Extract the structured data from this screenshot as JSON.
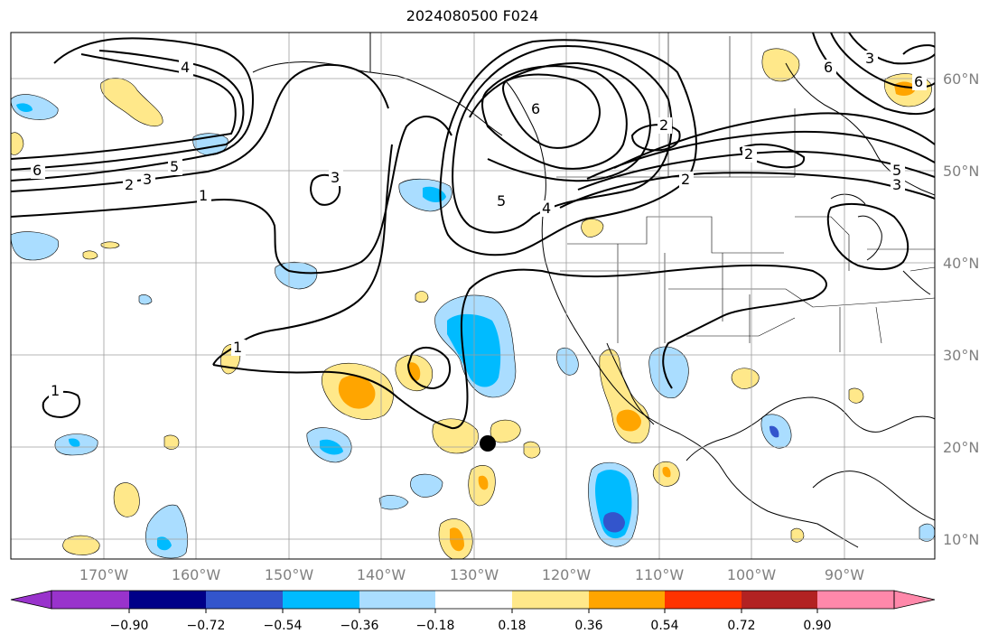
{
  "title": "2024080500 F024",
  "longitude_labels": [
    "170°W",
    "160°W",
    "150°W",
    "140°W",
    "130°W",
    "120°W",
    "110°W",
    "100°W",
    "90°W"
  ],
  "latitude_labels": [
    "60°N",
    "50°N",
    "40°N",
    "30°N",
    "20°N",
    "10°N"
  ],
  "colorbar": {
    "ticks": [
      "−0.90",
      "−0.72",
      "−0.54",
      "−0.36",
      "−0.18",
      "0.18",
      "0.36",
      "0.54",
      "0.72",
      "0.90"
    ],
    "colors": [
      "#9933cc",
      "#000088",
      "#3355cc",
      "#00bbff",
      "#aaddff",
      "#ffffff",
      "#ffe88a",
      "#ffa500",
      "#ff3300",
      "#b22222",
      "#ff88aa"
    ]
  },
  "contour_labels": [
    "4",
    "3",
    "6",
    "5",
    "3",
    "2",
    "1",
    "1",
    "1",
    "6",
    "2",
    "2",
    "5",
    "4",
    "5",
    "3",
    "6",
    "3",
    "2",
    "6"
  ],
  "marker": "storm-center-dot"
}
